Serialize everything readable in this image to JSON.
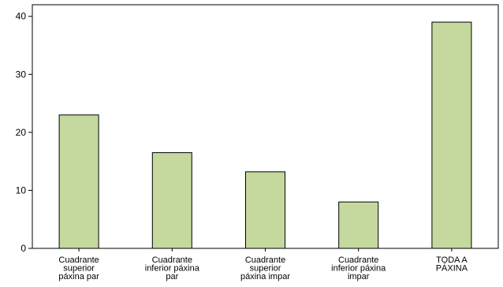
{
  "chart_data": {
    "type": "bar",
    "title": "",
    "xlabel": "",
    "ylabel": "",
    "categories": [
      [
        "Cuadrante",
        "superior",
        "páxina par"
      ],
      [
        "Cuadrante",
        "inferior páxina",
        "par"
      ],
      [
        "Cuadrante",
        "superior",
        "páxina impar"
      ],
      [
        "Cuadrante",
        "inferior páxina",
        "impar"
      ],
      [
        "TODA A",
        "PÁXINA"
      ]
    ],
    "values": [
      23,
      16.5,
      13.2,
      8,
      39
    ],
    "ylim": [
      0,
      42
    ],
    "yticks": [
      0,
      10,
      20,
      30,
      40
    ],
    "bar_color": "#c5d99e",
    "bar_stroke": "#000000",
    "grid": false,
    "legend": "none"
  }
}
